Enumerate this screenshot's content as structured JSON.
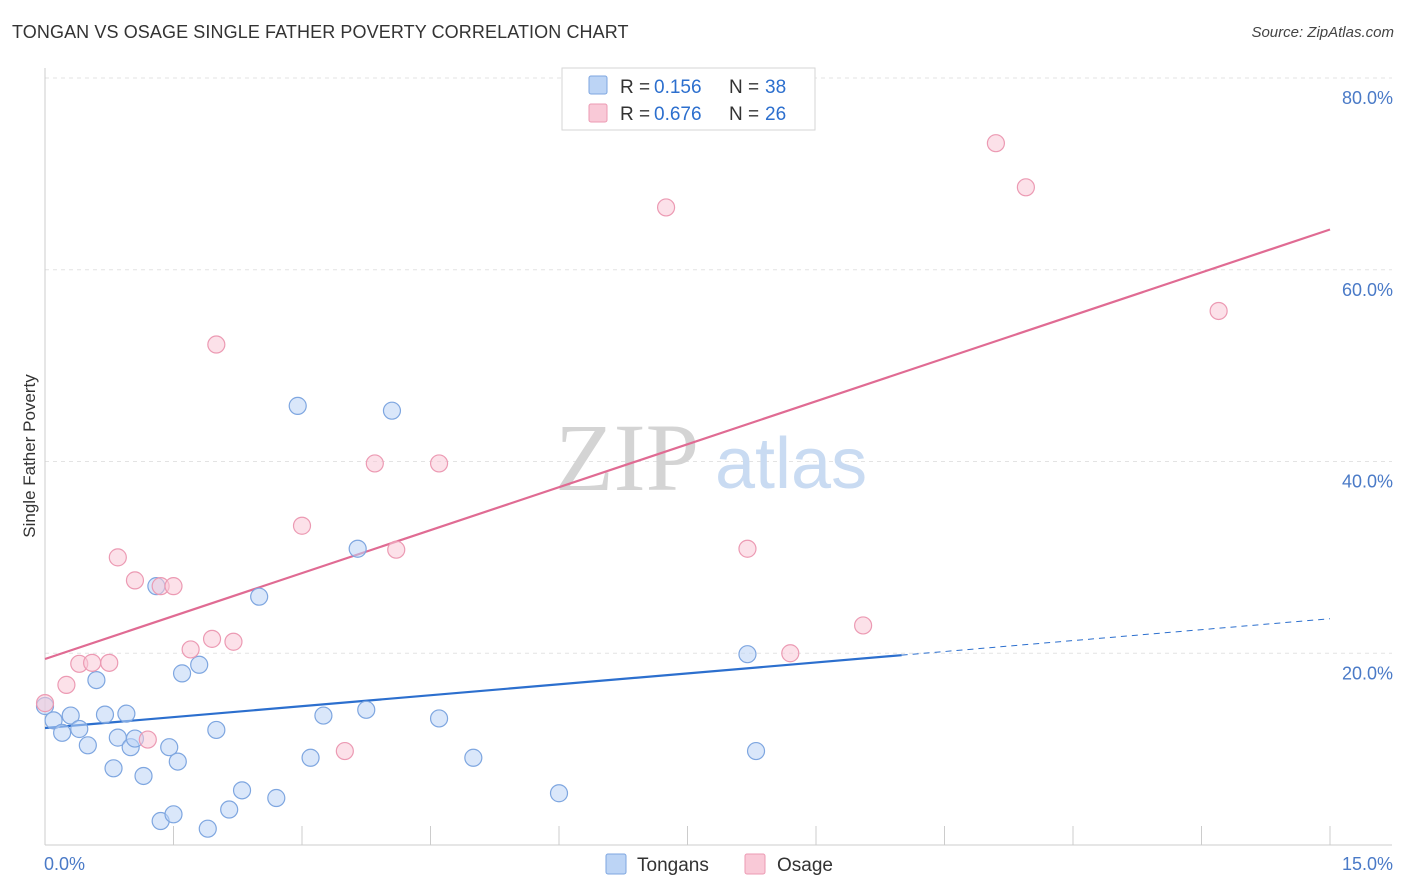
{
  "title": "TONGAN VS OSAGE SINGLE FATHER POVERTY CORRELATION CHART",
  "source": "Source: ZipAtlas.com",
  "watermark": {
    "zip": "ZIP",
    "atlas": "atlas"
  },
  "legend": {
    "r_label": "R =",
    "n_label": "N =",
    "rows": [
      {
        "r": "0.156",
        "n": "38"
      },
      {
        "r": "0.676",
        "n": "26"
      }
    ]
  },
  "bottom_legend": [
    "Tongans",
    "Osage"
  ],
  "colors": {
    "tongans_fill": "#bcd4f5",
    "tongans_stroke": "#7ea6e0",
    "tongans_line": "#2c6fce",
    "osage_fill": "#f9c9d7",
    "osage_stroke": "#ec9ab3",
    "osage_line": "#e06b93",
    "value_text": "#2c6fce",
    "grid": "#e3e3e3"
  },
  "chart_data": {
    "type": "scatter",
    "title": "TONGAN VS OSAGE SINGLE FATHER POVERTY CORRELATION CHART",
    "xlabel": "",
    "ylabel": "Single Father Poverty",
    "xlim": [
      0,
      15
    ],
    "ylim": [
      0,
      80
    ],
    "x_tick_labels": [
      "0.0%",
      "15.0%"
    ],
    "y_ticks": [
      20,
      40,
      60,
      80
    ],
    "y_tick_labels": [
      "20.0%",
      "40.0%",
      "60.0%",
      "80.0%"
    ],
    "grid": true,
    "legend_position": "top-center",
    "series": [
      {
        "name": "Tongans",
        "r": 0.156,
        "n": 38,
        "points": [
          [
            0.0,
            14.5
          ],
          [
            0.1,
            13.0
          ],
          [
            0.2,
            11.7
          ],
          [
            0.3,
            13.5
          ],
          [
            0.4,
            12.1
          ],
          [
            0.5,
            10.4
          ],
          [
            0.6,
            17.2
          ],
          [
            0.7,
            13.6
          ],
          [
            0.8,
            8.0
          ],
          [
            0.85,
            11.2
          ],
          [
            0.95,
            13.7
          ],
          [
            1.0,
            10.2
          ],
          [
            1.05,
            11.1
          ],
          [
            1.15,
            7.2
          ],
          [
            1.3,
            27.0
          ],
          [
            1.35,
            2.5
          ],
          [
            1.45,
            10.2
          ],
          [
            1.5,
            3.2
          ],
          [
            1.55,
            8.7
          ],
          [
            1.6,
            17.9
          ],
          [
            1.8,
            18.8
          ],
          [
            1.9,
            1.7
          ],
          [
            2.0,
            12.0
          ],
          [
            2.15,
            3.7
          ],
          [
            2.3,
            5.7
          ],
          [
            2.5,
            25.9
          ],
          [
            2.7,
            4.9
          ],
          [
            2.95,
            45.8
          ],
          [
            3.1,
            9.1
          ],
          [
            3.25,
            13.5
          ],
          [
            3.65,
            30.9
          ],
          [
            3.75,
            14.1
          ],
          [
            4.05,
            45.3
          ],
          [
            4.6,
            13.2
          ],
          [
            5.0,
            9.1
          ],
          [
            6.0,
            5.4
          ],
          [
            8.2,
            19.9
          ],
          [
            8.3,
            9.8
          ]
        ],
        "trend": {
          "x": [
            0,
            10
          ],
          "y": [
            12.2,
            19.8
          ]
        },
        "trend_dashed": {
          "x": [
            10,
            15
          ],
          "y": [
            19.8,
            23.6
          ]
        }
      },
      {
        "name": "Osage",
        "r": 0.676,
        "n": 26,
        "points": [
          [
            0.0,
            14.8
          ],
          [
            0.25,
            16.7
          ],
          [
            0.4,
            18.9
          ],
          [
            0.55,
            19.0
          ],
          [
            0.75,
            19.0
          ],
          [
            0.85,
            30.0
          ],
          [
            1.05,
            27.6
          ],
          [
            1.2,
            11.0
          ],
          [
            1.35,
            27.0
          ],
          [
            1.5,
            27.0
          ],
          [
            1.7,
            20.4
          ],
          [
            1.95,
            21.5
          ],
          [
            2.0,
            52.2
          ],
          [
            2.2,
            21.2
          ],
          [
            3.0,
            33.3
          ],
          [
            3.5,
            9.8
          ],
          [
            3.85,
            39.8
          ],
          [
            4.1,
            30.8
          ],
          [
            4.6,
            39.8
          ],
          [
            7.25,
            66.5
          ],
          [
            8.2,
            30.9
          ],
          [
            8.7,
            20.0
          ],
          [
            9.55,
            22.9
          ],
          [
            11.1,
            73.2
          ],
          [
            11.45,
            68.6
          ],
          [
            13.7,
            55.7
          ]
        ],
        "trend": {
          "x": [
            0,
            15
          ],
          "y": [
            19.4,
            64.2
          ]
        }
      }
    ]
  }
}
